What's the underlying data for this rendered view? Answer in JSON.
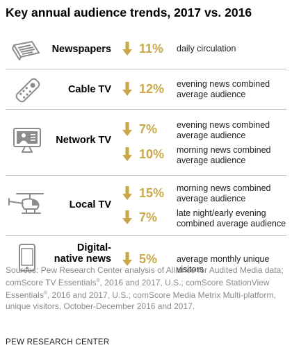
{
  "title": "Key annual audience trends, 2017 vs. 2016",
  "colors": {
    "accent": "#c9a84a",
    "icon": "#8c8c8c",
    "divider": "#bdbdbd"
  },
  "chart_data": {
    "type": "table",
    "columns": [
      "medium",
      "change",
      "metric"
    ],
    "rows": [
      {
        "medium": "Newspapers",
        "icon": "newspaper-icon",
        "direction": "down",
        "change": "11%",
        "metric": "daily circulation"
      },
      {
        "medium": "Cable TV",
        "icon": "remote-control-icon",
        "direction": "down",
        "change": "12%",
        "metric": "evening news combined average audience"
      },
      {
        "medium": "Network TV",
        "icon": "tv-icon",
        "direction": "down",
        "change": "7%",
        "metric": "evening news combined average audience"
      },
      {
        "medium": "Network TV",
        "icon": "tv-icon",
        "direction": "down",
        "change": "10%",
        "metric": "morning news combined average audience"
      },
      {
        "medium": "Local TV",
        "icon": "helicopter-icon",
        "direction": "down",
        "change": "15%",
        "metric": "morning news combined average audience"
      },
      {
        "medium": "Local TV",
        "icon": "helicopter-icon",
        "direction": "down",
        "change": "7%",
        "metric": "late night/early evening combined average audience"
      },
      {
        "medium": "Digital-native news",
        "icon": "phone-icon",
        "direction": "down",
        "change": "5%",
        "metric": "average monthly unique visitors"
      }
    ]
  },
  "rows": [
    {
      "label": "Newspapers",
      "icon": "newspaper-icon",
      "items": [
        {
          "pct": "11%",
          "line1": "daily circulation",
          "line2": ""
        }
      ]
    },
    {
      "label": "Cable TV",
      "icon": "remote-control-icon",
      "items": [
        {
          "pct": "12%",
          "line1": "evening news combined",
          "line2": "average audience"
        }
      ]
    },
    {
      "label": "Network TV",
      "icon": "tv-icon",
      "items": [
        {
          "pct": "7%",
          "line1": "evening news combined",
          "line2": "average audience"
        },
        {
          "pct": "10%",
          "line1": "morning news combined",
          "line2": "average audience"
        }
      ]
    },
    {
      "label": "Local TV",
      "icon": "helicopter-icon",
      "items": [
        {
          "pct": "15%",
          "line1": "morning news combined",
          "line2": "average audience"
        },
        {
          "pct": "7%",
          "line1": "late night/early evening",
          "line2": "combined average audience"
        }
      ]
    },
    {
      "label_line1": "Digital-",
      "label_line2": "native news",
      "icon": "phone-icon",
      "items": [
        {
          "pct": "5%",
          "line1": "average monthly unique visitors",
          "line2": ""
        }
      ]
    }
  ],
  "sources": {
    "prefix": "Sources: Pew Research Center analysis of Alliance for Audited Media data; comScore TV Essentials",
    "reg1": "®",
    "mid1": ", 2016 and 2017, U.S.; comScore StationView Essentials",
    "reg2": "®",
    "mid2": ", 2016 and 2017, U.S.; comScore Media Metrix Multi-platform, unique visitors, October-December 2016 and 2017."
  },
  "credit": "PEW RESEARCH CENTER"
}
